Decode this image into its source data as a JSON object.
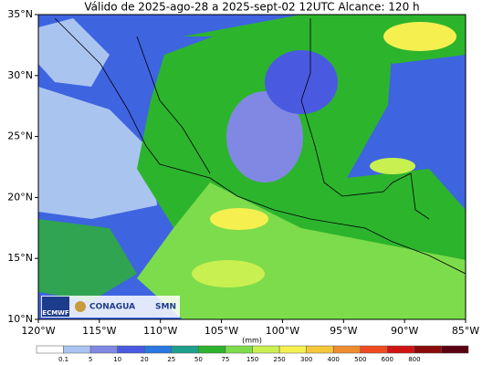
{
  "header": {
    "title": "Válido de 2025-ago-28 a 2025-sept-02 12UTC   Alcance: 120 h"
  },
  "axes": {
    "lat_labels": [
      "35°N",
      "30°N",
      "25°N",
      "20°N",
      "15°N",
      "10°N"
    ],
    "lon_labels": [
      "120°W",
      "115°W",
      "110°W",
      "105°W",
      "100°W",
      "95°W",
      "90°W",
      "85°W"
    ]
  },
  "colorbar": {
    "unit": "(mm)",
    "labels": [
      "0.1",
      "5",
      "10",
      "20",
      "25",
      "50",
      "75",
      "150",
      "250",
      "300",
      "400",
      "500",
      "600",
      "800"
    ],
    "colors": [
      "#ffffff",
      "#aac4f0",
      "#8088e4",
      "#4a5ae0",
      "#2a78e0",
      "#1e9e8c",
      "#2db42d",
      "#7ddc4b",
      "#c8f050",
      "#f5f050",
      "#f5c83c",
      "#f08c30",
      "#f04a20",
      "#d01414",
      "#8c0a0a",
      "#5a0010"
    ]
  },
  "logos": {
    "ecmwf": "ECMWF",
    "conagua": "CONAGUA",
    "smn": "SMN"
  }
}
